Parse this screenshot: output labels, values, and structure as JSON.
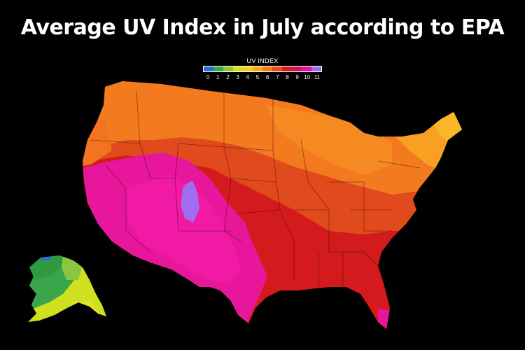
{
  "title": "Average UV Index in July according to EPA",
  "legend": {
    "title": "UV INDEX",
    "ticks": [
      "0",
      "1",
      "2",
      "3",
      "4",
      "5",
      "6",
      "7",
      "8",
      "9",
      "10",
      "11"
    ],
    "colors": [
      "#2b6fd6",
      "#3aa54b",
      "#8cc63f",
      "#d9e021",
      "#f5d020",
      "#f7a823",
      "#f47b20",
      "#ea4a1f",
      "#d7191c",
      "#c8175f",
      "#e8149a",
      "#9b6ff0"
    ]
  },
  "map": {
    "regions": [
      "contiguous-us",
      "alaska"
    ]
  }
}
